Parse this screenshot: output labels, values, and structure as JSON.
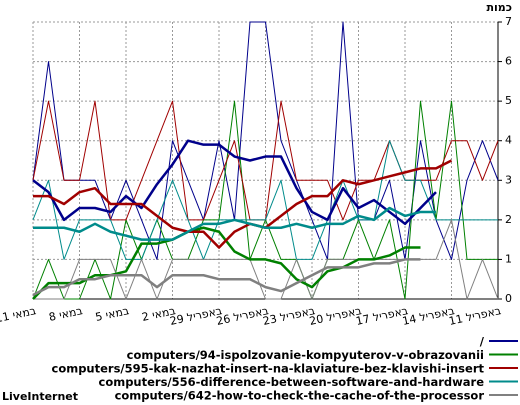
{
  "chart_data": {
    "type": "line",
    "y_axis_title": "כמות",
    "categories": [
      "11 במאי",
      null,
      null,
      "8 במאי",
      null,
      null,
      "5 במאי",
      null,
      null,
      "2 במאי",
      null,
      null,
      "29 באפריל",
      null,
      null,
      "26 באפריל",
      null,
      null,
      "23 באפריל",
      null,
      null,
      "20 באפריל",
      null,
      null,
      "17 באפריל",
      null,
      null,
      "14 באפריל",
      null,
      null,
      "11 באפריל"
    ],
    "ylim": [
      0,
      7
    ],
    "yticks": [
      0,
      1,
      2,
      3,
      4,
      5,
      6,
      7
    ],
    "grid": true,
    "series": [
      {
        "name": "/",
        "color": "#00008b",
        "values": [
          3,
          6,
          3,
          3,
          3,
          2,
          3,
          2,
          1,
          4,
          3,
          2,
          4,
          2,
          7,
          7,
          4,
          3,
          2,
          1,
          7,
          2,
          2,
          3,
          1,
          4,
          2,
          1,
          3,
          4,
          3
        ],
        "smoothed": [
          3,
          2.7,
          2,
          2.3,
          2.3,
          2.2,
          2.6,
          2.3,
          2.9,
          3.4,
          4,
          3.9,
          3.9,
          3.6,
          3.5,
          3.6,
          3.6,
          2.8,
          2.2,
          2,
          2.8,
          2.3,
          2.5,
          2.2,
          1.9,
          2.3,
          2.7,
          null,
          null,
          null,
          null
        ]
      },
      {
        "name": "computers/94-ispolzovanie-kompyuterov-v-obrazovanii",
        "color": "#008000",
        "values": [
          0,
          1,
          0,
          0,
          1,
          0,
          2,
          1,
          2,
          1,
          1,
          2,
          2,
          5,
          1,
          2,
          1,
          1,
          0,
          1,
          1,
          2,
          1,
          2,
          0,
          5,
          2,
          5,
          1,
          1,
          1
        ],
        "smoothed": [
          0,
          0.4,
          0.4,
          0.4,
          0.6,
          0.6,
          0.7,
          1.4,
          1.4,
          1.5,
          1.7,
          1.8,
          1.7,
          1.2,
          1,
          1,
          0.9,
          0.5,
          0.3,
          0.7,
          0.8,
          1,
          1,
          1.1,
          1.3,
          1.3,
          null,
          null,
          null,
          null,
          null
        ]
      },
      {
        "name": "computers/595-kak-nazhat-insert-na-klaviature-bez-klavishi-insert",
        "color": "#a00000",
        "values": [
          3,
          5,
          3,
          3,
          5,
          2,
          2,
          3,
          4,
          5,
          2,
          2,
          3,
          4,
          2,
          2,
          5,
          3,
          3,
          3,
          2,
          3,
          3,
          4,
          3,
          3,
          3,
          4,
          4,
          3,
          4
        ],
        "smoothed": [
          2.6,
          2.6,
          2.4,
          2.7,
          2.8,
          2.4,
          2.4,
          2.4,
          2.1,
          1.8,
          1.7,
          1.7,
          1.3,
          1.7,
          1.9,
          1.8,
          2.1,
          2.4,
          2.6,
          2.6,
          3,
          2.9,
          3,
          3.1,
          3.2,
          3.3,
          3.3,
          3.5,
          null,
          null,
          null
        ]
      },
      {
        "name": "computers/556-difference-between-software-and-hardware",
        "color": "#008b8b",
        "values": [
          2,
          3,
          1,
          2,
          2,
          2,
          1,
          1,
          2,
          3,
          2,
          1,
          2,
          2,
          2,
          2,
          3,
          1,
          1,
          2,
          3,
          2,
          2,
          4,
          3,
          3,
          2,
          2,
          2,
          2,
          2
        ],
        "smoothed": [
          1.8,
          1.8,
          1.8,
          1.7,
          1.9,
          1.7,
          1.6,
          1.5,
          1.5,
          1.5,
          1.7,
          1.9,
          1.9,
          2,
          1.9,
          1.8,
          1.8,
          1.9,
          1.8,
          1.9,
          1.9,
          2.1,
          2,
          2.3,
          2.1,
          2.2,
          2.2,
          null,
          null,
          null,
          null
        ]
      },
      {
        "name": "computers/642-how-to-check-the-cache-of-the-processor",
        "color": "#808080",
        "values": [
          0,
          0,
          0,
          1,
          1,
          1,
          0,
          1,
          0,
          1,
          1,
          1,
          1,
          1,
          1,
          0,
          0,
          1,
          0,
          1,
          1,
          1,
          1,
          1,
          1,
          1,
          1,
          2,
          0,
          1,
          0
        ],
        "smoothed": [
          0.1,
          0.3,
          0.3,
          0.5,
          0.5,
          0.6,
          0.6,
          0.6,
          0.3,
          0.6,
          0.6,
          0.6,
          0.5,
          0.5,
          0.5,
          0.3,
          0.2,
          0.4,
          0.6,
          0.8,
          0.8,
          0.8,
          0.9,
          0.9,
          1,
          1,
          null,
          null,
          null,
          null,
          null
        ]
      }
    ]
  },
  "footer": "LiveInternet"
}
